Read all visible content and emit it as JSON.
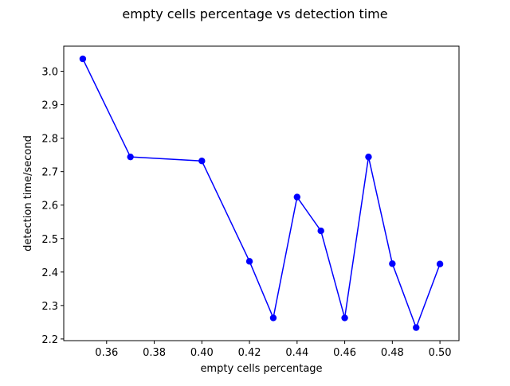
{
  "chart_data": {
    "type": "line",
    "title": "empty cells percentage vs detection time",
    "xlabel": "empty cells percentage",
    "ylabel": "detection time/second",
    "xlim": [
      0.342,
      0.508
    ],
    "ylim": [
      2.195,
      3.075
    ],
    "xticks": [
      0.36,
      0.38,
      0.4,
      0.42,
      0.44,
      0.46,
      0.48,
      0.5
    ],
    "xtick_labels": [
      "0.36",
      "0.38",
      "0.40",
      "0.42",
      "0.44",
      "0.46",
      "0.48",
      "0.50"
    ],
    "yticks": [
      2.2,
      2.3,
      2.4,
      2.5,
      2.6,
      2.7,
      2.8,
      2.9,
      3.0
    ],
    "ytick_labels": [
      "2.2",
      "2.3",
      "2.4",
      "2.5",
      "2.6",
      "2.7",
      "2.8",
      "2.9",
      "3.0"
    ],
    "grid": false,
    "series": [
      {
        "color": "#0000ff",
        "marker": "circle",
        "x": [
          0.35,
          0.37,
          0.4,
          0.42,
          0.43,
          0.44,
          0.45,
          0.46,
          0.47,
          0.48,
          0.49,
          0.5
        ],
        "y": [
          3.037,
          2.744,
          2.732,
          2.432,
          2.263,
          2.624,
          2.523,
          2.263,
          2.744,
          2.425,
          2.234,
          2.424
        ]
      }
    ]
  }
}
